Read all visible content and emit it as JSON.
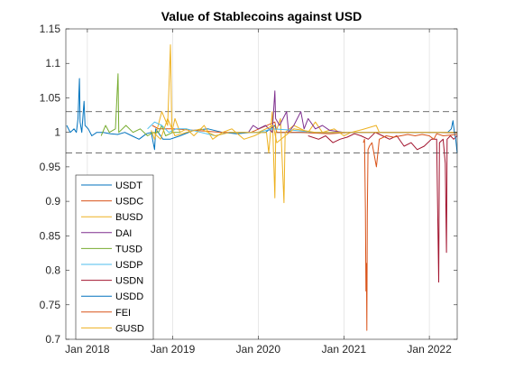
{
  "chart_data": {
    "type": "line",
    "title": "Value of Stablecoins against USD",
    "xlabel": "",
    "ylabel": "",
    "x_domain": [
      "2017-10-01",
      "2022-04-30"
    ],
    "xlim": [
      "2017-10-01",
      "2022-04-30"
    ],
    "ylim": [
      0.7,
      1.15
    ],
    "x_ticks": [
      {
        "date": "2018-01-01",
        "label": "Jan 2018"
      },
      {
        "date": "2019-01-01",
        "label": "Jan 2019"
      },
      {
        "date": "2020-01-01",
        "label": "Jan 2020"
      },
      {
        "date": "2021-01-01",
        "label": "Jan 2021"
      },
      {
        "date": "2022-01-01",
        "label": "Jan 2022"
      }
    ],
    "y_ticks": [
      {
        "value": 0.7,
        "label": "0.7"
      },
      {
        "value": 0.75,
        "label": "0.75"
      },
      {
        "value": 0.8,
        "label": "0.8"
      },
      {
        "value": 0.85,
        "label": "0.85"
      },
      {
        "value": 0.9,
        "label": "0.9"
      },
      {
        "value": 0.95,
        "label": "0.95"
      },
      {
        "value": 1.0,
        "label": "1"
      },
      {
        "value": 1.05,
        "label": "1.05"
      },
      {
        "value": 1.1,
        "label": "1.1"
      },
      {
        "value": 1.15,
        "label": "1.15"
      }
    ],
    "grid": "vertical",
    "reference_lines": [
      1.03,
      0.97
    ],
    "legend_position": "bottom-left",
    "series": [
      {
        "name": "USDT",
        "color": "#0072BD",
        "points": [
          [
            "2017-10-05",
            1.01
          ],
          [
            "2017-10-20",
            1.0
          ],
          [
            "2017-11-05",
            1.005
          ],
          [
            "2017-11-15",
            1.0
          ],
          [
            "2017-11-22",
            1.02
          ],
          [
            "2017-11-28",
            1.078
          ],
          [
            "2017-12-01",
            1.015
          ],
          [
            "2017-12-08",
            1.0
          ],
          [
            "2017-12-18",
            1.045
          ],
          [
            "2017-12-22",
            1.01
          ],
          [
            "2018-01-05",
            1.005
          ],
          [
            "2018-01-20",
            0.995
          ],
          [
            "2018-02-10",
            1.0
          ],
          [
            "2018-03-10",
            1.0
          ],
          [
            "2018-04-10",
            0.998
          ],
          [
            "2018-05-10",
            0.997
          ],
          [
            "2018-06-10",
            1.0
          ],
          [
            "2018-07-10",
            0.995
          ],
          [
            "2018-08-10",
            0.99
          ],
          [
            "2018-09-10",
            0.998
          ],
          [
            "2018-10-01",
            1.0
          ],
          [
            "2018-10-15",
            0.975
          ],
          [
            "2018-10-20",
            1.005
          ],
          [
            "2018-11-20",
            0.99
          ],
          [
            "2018-12-20",
            0.99
          ],
          [
            "2019-02-01",
            0.995
          ],
          [
            "2019-04-01",
            1.003
          ],
          [
            "2019-06-01",
            1.005
          ],
          [
            "2019-08-01",
            1.0
          ],
          [
            "2019-10-01",
            0.998
          ],
          [
            "2019-12-01",
            1.0
          ],
          [
            "2020-02-01",
            1.0
          ],
          [
            "2020-03-12",
            1.01
          ],
          [
            "2020-03-20",
            1.0
          ],
          [
            "2020-06-01",
            1.0
          ],
          [
            "2020-09-01",
            1.0
          ],
          [
            "2020-12-01",
            1.0
          ],
          [
            "2021-03-01",
            1.0
          ],
          [
            "2021-06-01",
            1.0
          ],
          [
            "2021-09-01",
            1.0
          ],
          [
            "2021-12-01",
            1.0
          ],
          [
            "2022-02-01",
            1.0
          ],
          [
            "2022-04-30",
            1.0
          ]
        ]
      },
      {
        "name": "USDC",
        "color": "#D95319",
        "points": [
          [
            "2018-10-05",
            1.01
          ],
          [
            "2018-11-01",
            1.005
          ],
          [
            "2019-01-01",
            1.005
          ],
          [
            "2019-04-01",
            1.003
          ],
          [
            "2019-08-01",
            1.0
          ],
          [
            "2019-12-01",
            1.0
          ],
          [
            "2020-03-12",
            1.015
          ],
          [
            "2020-03-20",
            1.0
          ],
          [
            "2020-07-01",
            1.0
          ],
          [
            "2020-11-01",
            0.998
          ],
          [
            "2021-02-01",
            1.0
          ],
          [
            "2021-06-01",
            1.0
          ],
          [
            "2021-10-01",
            1.0
          ],
          [
            "2022-01-01",
            1.0
          ],
          [
            "2022-04-30",
            0.999
          ]
        ]
      },
      {
        "name": "BUSD",
        "color": "#EDB120",
        "points": [
          [
            "2018-10-01",
            1.003
          ],
          [
            "2018-10-15",
            0.99
          ],
          [
            "2018-11-15",
            1.03
          ],
          [
            "2018-12-10",
            1.01
          ],
          [
            "2018-12-22",
            1.127
          ],
          [
            "2018-12-28",
            1.0
          ],
          [
            "2019-01-10",
            1.02
          ],
          [
            "2019-02-01",
            1.0
          ],
          [
            "2019-03-01",
            1.005
          ],
          [
            "2019-04-01",
            0.995
          ],
          [
            "2019-05-15",
            1.01
          ],
          [
            "2019-06-20",
            0.99
          ],
          [
            "2019-08-01",
            1.0
          ],
          [
            "2019-09-10",
            1.005
          ],
          [
            "2019-11-01",
            0.99
          ],
          [
            "2019-12-15",
            0.995
          ],
          [
            "2020-01-15",
            1.0
          ],
          [
            "2020-02-05",
            1.0
          ],
          [
            "2020-02-15",
            0.97
          ],
          [
            "2020-03-01",
            1.03
          ],
          [
            "2020-03-12",
            0.905
          ],
          [
            "2020-03-16",
            1.0
          ],
          [
            "2020-04-05",
            1.02
          ],
          [
            "2020-04-20",
            0.898
          ],
          [
            "2020-04-25",
            1.0
          ],
          [
            "2020-06-01",
            1.01
          ],
          [
            "2020-08-01",
            1.0
          ],
          [
            "2020-09-01",
            1.015
          ],
          [
            "2020-10-01",
            1.0
          ],
          [
            "2020-11-20",
            1.005
          ],
          [
            "2021-01-01",
            0.995
          ],
          [
            "2021-02-01",
            1.0
          ],
          [
            "2021-03-20",
            1.004
          ],
          [
            "2021-05-19",
            1.01
          ],
          [
            "2021-06-01",
            1.0
          ],
          [
            "2021-09-01",
            1.0
          ],
          [
            "2021-12-01",
            1.0
          ],
          [
            "2022-02-01",
            1.0
          ],
          [
            "2022-04-30",
            1.0
          ]
        ]
      },
      {
        "name": "DAI",
        "color": "#7E2F8E",
        "points": [
          [
            "2019-11-20",
            1.0
          ],
          [
            "2019-12-10",
            1.01
          ],
          [
            "2020-01-01",
            1.005
          ],
          [
            "2020-02-01",
            1.01
          ],
          [
            "2020-03-01",
            1.0
          ],
          [
            "2020-03-12",
            1.06
          ],
          [
            "2020-03-15",
            1.02
          ],
          [
            "2020-04-01",
            1.01
          ],
          [
            "2020-05-01",
            1.03
          ],
          [
            "2020-05-10",
            1.0
          ],
          [
            "2020-06-01",
            1.01
          ],
          [
            "2020-07-01",
            1.03
          ],
          [
            "2020-07-15",
            1.005
          ],
          [
            "2020-08-01",
            1.02
          ],
          [
            "2020-09-01",
            1.005
          ],
          [
            "2020-10-01",
            1.01
          ],
          [
            "2020-11-01",
            1.003
          ],
          [
            "2021-01-01",
            1.0
          ],
          [
            "2021-04-01",
            1.0
          ],
          [
            "2021-07-01",
            1.0
          ],
          [
            "2021-10-01",
            1.0
          ],
          [
            "2022-01-01",
            1.0
          ],
          [
            "2022-04-30",
            1.0
          ]
        ]
      },
      {
        "name": "TUSD",
        "color": "#77AC30",
        "points": [
          [
            "2018-03-01",
            0.995
          ],
          [
            "2018-03-20",
            1.01
          ],
          [
            "2018-04-05",
            1.0
          ],
          [
            "2018-05-01",
            1.005
          ],
          [
            "2018-05-12",
            1.085
          ],
          [
            "2018-05-15",
            1.0
          ],
          [
            "2018-06-15",
            1.01
          ],
          [
            "2018-07-15",
            1.0
          ],
          [
            "2018-08-15",
            1.005
          ],
          [
            "2018-09-15",
            0.995
          ],
          [
            "2018-10-10",
            1.0
          ],
          [
            "2018-11-01",
            1.0
          ],
          [
            "2018-11-15",
            1.01
          ],
          [
            "2018-12-01",
            0.995
          ],
          [
            "2019-01-01",
            1.0
          ],
          [
            "2019-02-01",
            1.0
          ]
        ]
      },
      {
        "name": "USDP",
        "color": "#4DBEEE",
        "points": [
          [
            "2018-09-15",
            1.005
          ],
          [
            "2018-10-15",
            1.015
          ],
          [
            "2018-11-15",
            1.01
          ],
          [
            "2018-12-15",
            1.0
          ],
          [
            "2019-01-15",
            1.005
          ],
          [
            "2019-03-01",
            1.005
          ],
          [
            "2019-05-01",
            1.0
          ],
          [
            "2019-07-01",
            0.995
          ],
          [
            "2019-09-01",
            1.0
          ],
          [
            "2019-11-01",
            1.0
          ],
          [
            "2020-01-01",
            1.0
          ],
          [
            "2020-03-01",
            1.005
          ],
          [
            "2020-06-01",
            1.003
          ],
          [
            "2020-09-01",
            1.0
          ],
          [
            "2020-12-01",
            1.0
          ],
          [
            "2021-04-01",
            1.0
          ],
          [
            "2021-08-01",
            1.0
          ],
          [
            "2021-12-01",
            1.0
          ],
          [
            "2022-04-30",
            1.0
          ]
        ]
      },
      {
        "name": "USDN",
        "color": "#A2142F",
        "points": [
          [
            "2020-08-01",
            0.995
          ],
          [
            "2020-09-15",
            0.99
          ],
          [
            "2020-10-15",
            0.995
          ],
          [
            "2020-11-15",
            0.985
          ],
          [
            "2020-12-15",
            0.99
          ],
          [
            "2021-01-15",
            0.993
          ],
          [
            "2021-02-15",
            0.998
          ],
          [
            "2021-03-15",
            0.995
          ],
          [
            "2021-04-15",
            0.99
          ],
          [
            "2021-05-15",
            1.0
          ],
          [
            "2021-06-15",
            0.995
          ],
          [
            "2021-07-15",
            0.99
          ],
          [
            "2021-08-15",
            0.995
          ],
          [
            "2021-09-15",
            0.98
          ],
          [
            "2021-10-15",
            0.985
          ],
          [
            "2021-11-10",
            0.975
          ],
          [
            "2021-12-10",
            0.98
          ],
          [
            "2022-01-10",
            0.99
          ],
          [
            "2022-02-01",
            0.99
          ],
          [
            "2022-02-10",
            0.783
          ],
          [
            "2022-02-13",
            0.985
          ],
          [
            "2022-03-01",
            0.99
          ],
          [
            "2022-03-10",
            0.955
          ],
          [
            "2022-03-15",
            0.826
          ],
          [
            "2022-03-18",
            0.99
          ],
          [
            "2022-04-01",
            0.995
          ],
          [
            "2022-04-15",
            0.99
          ],
          [
            "2022-04-30",
            0.995
          ]
        ]
      },
      {
        "name": "USDD",
        "color": "#0072BD",
        "points": [
          [
            "2022-03-20",
            1.0
          ],
          [
            "2022-04-05",
            1.005
          ],
          [
            "2022-04-12",
            1.017
          ],
          [
            "2022-04-18",
            1.0
          ],
          [
            "2022-04-24",
            0.99
          ],
          [
            "2022-04-30",
            0.97
          ]
        ]
      },
      {
        "name": "FEI",
        "color": "#D95319",
        "points": [
          [
            "2021-03-25",
            0.985
          ],
          [
            "2021-03-30",
            0.99
          ],
          [
            "2021-04-03",
            0.888
          ],
          [
            "2021-04-05",
            0.77
          ],
          [
            "2021-04-07",
            0.81
          ],
          [
            "2021-04-09",
            0.713
          ],
          [
            "2021-04-11",
            0.88
          ],
          [
            "2021-04-14",
            0.975
          ],
          [
            "2021-04-20",
            0.98
          ],
          [
            "2021-05-01",
            0.985
          ],
          [
            "2021-05-20",
            0.95
          ],
          [
            "2021-06-01",
            0.99
          ],
          [
            "2021-07-01",
            0.995
          ],
          [
            "2021-08-01",
            0.993
          ],
          [
            "2021-09-01",
            0.995
          ],
          [
            "2021-10-01",
            0.997
          ],
          [
            "2021-11-01",
            0.995
          ],
          [
            "2021-12-01",
            0.997
          ],
          [
            "2022-01-01",
            0.995
          ],
          [
            "2022-01-20",
            0.99
          ],
          [
            "2022-02-01",
            0.998
          ],
          [
            "2022-03-01",
            0.995
          ],
          [
            "2022-04-30",
            0.997
          ]
        ]
      },
      {
        "name": "GUSD",
        "color": "#EDB120",
        "points": [
          [
            "2018-10-10",
            1.0
          ],
          [
            "2018-11-10",
            0.99
          ],
          [
            "2018-12-10",
            1.02
          ],
          [
            "2019-01-10",
            0.995
          ],
          [
            "2019-03-01",
            1.0
          ],
          [
            "2019-05-01",
            1.005
          ],
          [
            "2019-07-01",
            0.995
          ],
          [
            "2019-09-01",
            1.0
          ],
          [
            "2019-11-01",
            1.0
          ],
          [
            "2020-01-01",
            1.0
          ],
          [
            "2020-03-05",
            1.01
          ],
          [
            "2020-03-20",
            0.985
          ],
          [
            "2020-06-01",
            1.005
          ],
          [
            "2020-09-01",
            1.0
          ],
          [
            "2020-12-01",
            1.0
          ],
          [
            "2021-04-01",
            1.0
          ],
          [
            "2021-08-01",
            1.0
          ],
          [
            "2021-12-01",
            1.0
          ],
          [
            "2022-04-30",
            1.0
          ]
        ]
      }
    ]
  }
}
